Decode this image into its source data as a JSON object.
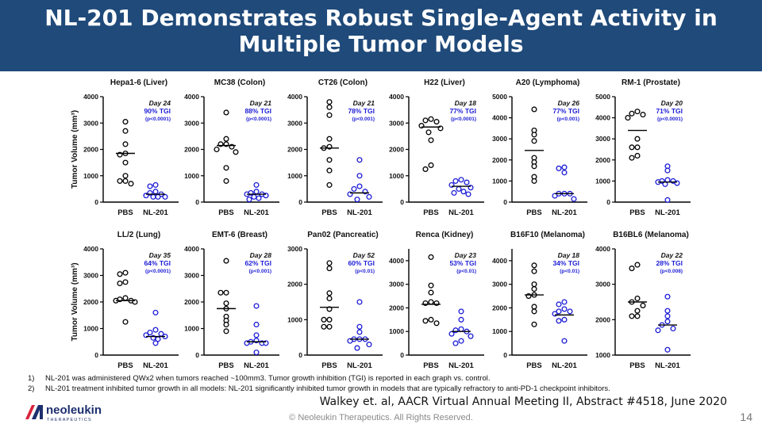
{
  "title": "NL-201 Demonstrates Robust Single-Agent Activity in Multiple Tumor Models",
  "footnotes": [
    {
      "num": "1)",
      "text": "NL-201 was administered QWx2 when tumors reached ~100mm3. Tumor growth inhibition (TGI) is reported in each graph vs. control."
    },
    {
      "num": "2)",
      "text": "NL-201 treatment inhibited tumor growth in all models: NL-201 significantly inhibited tumor growth in models that are typically refractory to anti-PD-1 checkpoint inhibitors."
    }
  ],
  "citation": "Walkey et. al, AACR Virtual Annual Meeting II, Abstract #4518, June 2020",
  "copyright": "© Neoleukin Therapeutics. All Rights Reserved.",
  "page_number": "14",
  "logo": {
    "name": "neoleukin",
    "sub": "THERAPEUTICS"
  },
  "colors": {
    "title_bg": "#1f4a7a",
    "nl201": "#1c1cd6",
    "pbs": "#000000",
    "logo_red": "#d9233b",
    "logo_navy": "#1d2f6f"
  },
  "chart_data": [
    {
      "type": "scatter",
      "title": "Hepa1-6 (Liver)",
      "ylabel": "Tumor Volume (mm³)",
      "ylim": [
        0,
        4000
      ],
      "yticks": [
        0,
        1000,
        2000,
        3000,
        4000
      ],
      "categories": [
        "PBS",
        "NL-201"
      ],
      "annot_day": "Day 24",
      "annot_tgi": "90% TGI",
      "annot_p": "(p<0.0001)",
      "series": [
        {
          "name": "PBS",
          "values": [
            3050,
            2700,
            2200,
            1850,
            1800,
            1500,
            1000,
            800,
            800,
            700
          ],
          "mean": 1850
        },
        {
          "name": "NL-201",
          "values": [
            650,
            600,
            400,
            350,
            300,
            250,
            200,
            200,
            200
          ],
          "mean": 300
        }
      ]
    },
    {
      "type": "scatter",
      "title": "MC38 (Colon)",
      "ylabel": "",
      "ylim": [
        0,
        4000
      ],
      "yticks": [
        0,
        1000,
        2000,
        3000,
        4000
      ],
      "categories": [
        "PBS",
        "NL-201"
      ],
      "annot_day": "Day 21",
      "annot_tgi": "88% TGI",
      "annot_p": "(p<0.0001)",
      "series": [
        {
          "name": "PBS",
          "values": [
            3400,
            2400,
            2200,
            2200,
            2100,
            2000,
            1900,
            1300,
            800
          ],
          "mean": 2150
        },
        {
          "name": "NL-201",
          "values": [
            650,
            400,
            350,
            300,
            300,
            250,
            200,
            150,
            100
          ],
          "mean": 300
        }
      ]
    },
    {
      "type": "scatter",
      "title": "CT26 (Colon)",
      "ylabel": "",
      "ylim": [
        0,
        4000
      ],
      "yticks": [
        0,
        1000,
        2000,
        3000,
        4000
      ],
      "categories": [
        "PBS",
        "NL-201"
      ],
      "annot_day": "Day 21",
      "annot_tgi": "78% TGI",
      "annot_p": "(p<0.001)",
      "series": [
        {
          "name": "PBS",
          "values": [
            3800,
            3600,
            3300,
            2400,
            2100,
            2050,
            1600,
            1200,
            650
          ],
          "mean": 2050
        },
        {
          "name": "NL-201",
          "values": [
            1600,
            1000,
            600,
            500,
            400,
            300,
            200,
            100
          ],
          "mean": 350
        }
      ]
    },
    {
      "type": "scatter",
      "title": "H22 (Liver)",
      "ylabel": "",
      "ylim": [
        0,
        4000
      ],
      "yticks": [
        0,
        1000,
        2000,
        3000,
        4000
      ],
      "categories": [
        "PBS",
        "NL-201"
      ],
      "annot_day": "Day 18",
      "annot_tgi": "77% TGI",
      "annot_p": "(p<0.0001)",
      "series": [
        {
          "name": "PBS",
          "values": [
            3150,
            3100,
            3050,
            2900,
            2800,
            2650,
            2350,
            1400,
            1250
          ],
          "mean": 2850
        },
        {
          "name": "NL-201",
          "values": [
            850,
            800,
            750,
            650,
            550,
            500,
            400,
            350,
            300
          ],
          "mean": 600
        }
      ]
    },
    {
      "type": "scatter",
      "title": "A20 (Lymphoma)",
      "ylabel": "",
      "ylim": [
        0,
        5000
      ],
      "yticks": [
        0,
        1000,
        2000,
        3000,
        4000,
        5000
      ],
      "categories": [
        "PBS",
        "NL-201"
      ],
      "annot_day": "Day 26",
      "annot_tgi": "77% TGI",
      "annot_p": "(p<0.001)",
      "series": [
        {
          "name": "PBS",
          "values": [
            4400,
            3400,
            3200,
            2900,
            2100,
            1900,
            1700,
            1200,
            1000
          ],
          "mean": 2450
        },
        {
          "name": "NL-201",
          "values": [
            1650,
            1600,
            1400,
            400,
            400,
            400,
            300,
            150
          ],
          "mean": 400
        }
      ]
    },
    {
      "type": "scatter",
      "title": "RM-1 (Prostate)",
      "ylabel": "",
      "ylim": [
        0,
        5000
      ],
      "yticks": [
        0,
        1000,
        2000,
        3000,
        4000,
        5000
      ],
      "categories": [
        "PBS",
        "NL-201"
      ],
      "annot_day": "Day 20",
      "annot_tgi": "71% TGI",
      "annot_p": "(p<0.0001)",
      "series": [
        {
          "name": "PBS",
          "values": [
            4300,
            4200,
            4150,
            4000,
            3000,
            2600,
            2600,
            2200,
            2100
          ],
          "mean": 3400
        },
        {
          "name": "NL-201",
          "values": [
            1700,
            1500,
            1050,
            1000,
            1000,
            950,
            900,
            850,
            100
          ],
          "mean": 950
        }
      ]
    },
    {
      "type": "scatter",
      "title": "LL/2 (Lung)",
      "ylabel": "Tumor Volume (mm³)",
      "ylim": [
        0,
        4000
      ],
      "yticks": [
        0,
        1000,
        2000,
        3000,
        4000
      ],
      "categories": [
        "PBS",
        "NL-201"
      ],
      "annot_day": "Day 35",
      "annot_tgi": "64% TGI",
      "annot_p": "(p<0.0001)",
      "series": [
        {
          "name": "PBS",
          "values": [
            3100,
            3050,
            2750,
            2700,
            2150,
            2100,
            2050,
            2050,
            2000,
            1250
          ],
          "mean": 2050
        },
        {
          "name": "NL-201",
          "values": [
            1600,
            950,
            850,
            800,
            750,
            700,
            650,
            600,
            450
          ],
          "mean": 700
        }
      ]
    },
    {
      "type": "scatter",
      "title": "EMT-6 (Breast)",
      "ylabel": "",
      "ylim": [
        0,
        4000
      ],
      "yticks": [
        0,
        1000,
        2000,
        3000,
        4000
      ],
      "categories": [
        "PBS",
        "NL-201"
      ],
      "annot_day": "Day 28",
      "annot_tgi": "62% TGI",
      "annot_p": "(p<0.001)",
      "series": [
        {
          "name": "PBS",
          "values": [
            3550,
            2350,
            2350,
            1950,
            1750,
            1450,
            1300,
            1150,
            900
          ],
          "mean": 1750
        },
        {
          "name": "NL-201",
          "values": [
            1850,
            1150,
            750,
            550,
            500,
            450,
            450,
            450,
            100
          ],
          "mean": 500
        }
      ]
    },
    {
      "type": "scatter",
      "title": "Pan02 (Pancreatic)",
      "ylabel": "",
      "ylim": [
        0,
        3000
      ],
      "yticks": [
        0,
        1000,
        2000,
        3000
      ],
      "categories": [
        "PBS",
        "NL-201"
      ],
      "annot_day": "Day 52",
      "annot_tgi": "60% TGI",
      "annot_p": "(p<0.01)",
      "series": [
        {
          "name": "PBS",
          "values": [
            2600,
            2450,
            1750,
            1600,
            1300,
            1000,
            1000,
            800,
            800
          ],
          "mean": 1350
        },
        {
          "name": "NL-201",
          "values": [
            1500,
            800,
            650,
            450,
            450,
            450,
            400,
            300,
            200
          ],
          "mean": 450
        }
      ]
    },
    {
      "type": "scatter",
      "title": "Renca (Kidney)",
      "ylabel": "",
      "ylim": [
        0,
        4500
      ],
      "yticks": [
        0,
        1000,
        2000,
        3000,
        4000
      ],
      "categories": [
        "PBS",
        "NL-201"
      ],
      "annot_day": "Day 23",
      "annot_tgi": "53% TGI",
      "annot_p": "(p<0.01)",
      "series": [
        {
          "name": "PBS",
          "values": [
            4150,
            2950,
            2650,
            2250,
            2200,
            2200,
            1500,
            1450,
            1350
          ],
          "mean": 2150
        },
        {
          "name": "NL-201",
          "values": [
            1850,
            1500,
            1100,
            1050,
            1000,
            900,
            800,
            600,
            500
          ],
          "mean": 1000
        }
      ]
    },
    {
      "type": "scatter",
      "title": "B16F10 (Melanoma)",
      "ylabel": "",
      "ylim": [
        0,
        4500
      ],
      "yticks": [
        0,
        1000,
        2000,
        3000,
        4000
      ],
      "categories": [
        "PBS",
        "NL-201"
      ],
      "annot_day": "Day 18",
      "annot_tgi": "34% TGI",
      "annot_p": "(p<0.01)",
      "series": [
        {
          "name": "PBS",
          "values": [
            3800,
            3550,
            3000,
            2800,
            2550,
            2500,
            2050,
            1850,
            1300
          ],
          "mean": 2550
        },
        {
          "name": "NL-201",
          "values": [
            2250,
            2150,
            1950,
            1850,
            1850,
            1750,
            1500,
            1450,
            600
          ],
          "mean": 1700
        }
      ]
    },
    {
      "type": "scatter",
      "title": "B16BL6 (Melanoma)",
      "ylabel": "",
      "ylim": [
        1000,
        4000
      ],
      "yticks": [
        1000,
        2000,
        3000,
        4000
      ],
      "categories": [
        "PBS",
        "NL-201"
      ],
      "annot_day": "Day 22",
      "annot_tgi": "28% TGI",
      "annot_p": "(p<0.008)",
      "series": [
        {
          "name": "PBS",
          "values": [
            3550,
            3450,
            2600,
            2500,
            2400,
            2250,
            2100,
            2100
          ],
          "mean": 2500
        },
        {
          "name": "NL-201",
          "values": [
            2650,
            2250,
            2100,
            1950,
            1850,
            1750,
            1700,
            1150
          ],
          "mean": 1850
        }
      ]
    }
  ]
}
